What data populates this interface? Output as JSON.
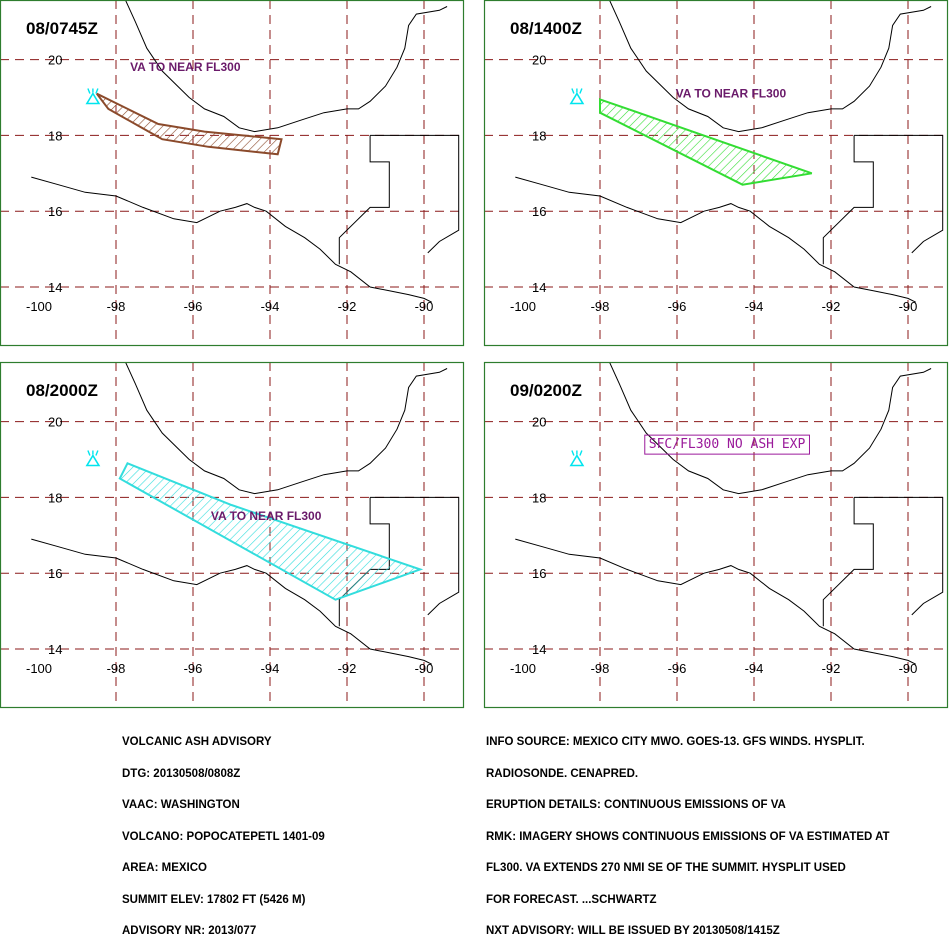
{
  "colors": {
    "frame": "#2e7d2e",
    "grid": "#8b1a1a",
    "coast": "#000000",
    "volcano": "#00e5ee",
    "label_purple": "#6a1a6a",
    "boxed_label": "#9a1a9a"
  },
  "axes": {
    "lon_ticks": [
      -100,
      -98,
      -96,
      -94,
      -92,
      -90
    ],
    "lat_ticks": [
      14,
      16,
      18,
      20
    ],
    "grid_lons": [
      -98,
      -96,
      -94,
      -92,
      -90
    ],
    "grid_lats": [
      14,
      16,
      18,
      20
    ]
  },
  "volcano": {
    "name": "POPOCATEPETL",
    "lon": -98.6,
    "lat": 19.0,
    "icon": "volcano-icon"
  },
  "panels": [
    {
      "id": "panel-0745",
      "time": "08/0745Z",
      "label": {
        "text": "VA TO NEAR FL300",
        "lon": -96.2,
        "lat": 19.7,
        "boxed": false
      },
      "ash": {
        "color": "#8b4a2b",
        "polygon": [
          [
            -98.5,
            19.1
          ],
          [
            -96.9,
            18.3
          ],
          [
            -95.7,
            18.1
          ],
          [
            -93.7,
            17.9
          ],
          [
            -93.8,
            17.5
          ],
          [
            -95.6,
            17.7
          ],
          [
            -96.8,
            17.9
          ],
          [
            -98.2,
            18.7
          ]
        ]
      }
    },
    {
      "id": "panel-1400",
      "time": "08/1400Z",
      "label": {
        "text": "VA TO NEAR FL300",
        "lon": -94.6,
        "lat": 19.0,
        "boxed": false
      },
      "ash": {
        "color": "#33dd33",
        "polygon": [
          [
            -98.0,
            18.95
          ],
          [
            -97.0,
            18.6
          ],
          [
            -92.5,
            17.0
          ],
          [
            -94.3,
            16.7
          ],
          [
            -98.0,
            18.6
          ]
        ]
      }
    },
    {
      "id": "panel-2000",
      "time": "08/2000Z",
      "label": {
        "text": "VA TO NEAR FL300",
        "lon": -94.1,
        "lat": 17.4,
        "boxed": false
      },
      "ash": {
        "color": "#33dddd",
        "polygon": [
          [
            -97.7,
            18.9
          ],
          [
            -95.0,
            17.8
          ],
          [
            -90.1,
            16.1
          ],
          [
            -92.3,
            15.3
          ],
          [
            -97.9,
            18.5
          ]
        ]
      }
    },
    {
      "id": "panel-0200",
      "time": "09/0200Z",
      "label": {
        "text": "SFC/FL300 NO ASH EXP",
        "lon": -94.7,
        "lat": 19.3,
        "boxed": true
      },
      "ash": null
    }
  ],
  "advisory_left": [
    "VOLCANIC ASH ADVISORY",
    "DTG: 20130508/0808Z",
    "VAAC: WASHINGTON",
    "VOLCANO: POPOCATEPETL 1401-09",
    "AREA: MEXICO",
    "SUMMIT ELEV: 17802 FT (5426 M)",
    "ADVISORY NR: 2013/077"
  ],
  "advisory_right": [
    "INFO SOURCE: MEXICO CITY MWO. GOES-13. GFS WINDS. HYSPLIT.",
    "RADIOSONDE. CENAPRED.",
    "ERUPTION DETAILS: CONTINUOUS EMISSIONS OF VA",
    "RMK: IMAGERY SHOWS CONTINUOUS EMISSIONS OF VA ESTIMATED AT",
    "FL300. VA EXTENDS 270 NMI SE OF THE SUMMIT. HYSPLIT USED",
    "FOR FORECAST. ...SCHWARTZ",
    "NXT ADVISORY: WILL BE ISSUED BY 20130508/1415Z"
  ]
}
